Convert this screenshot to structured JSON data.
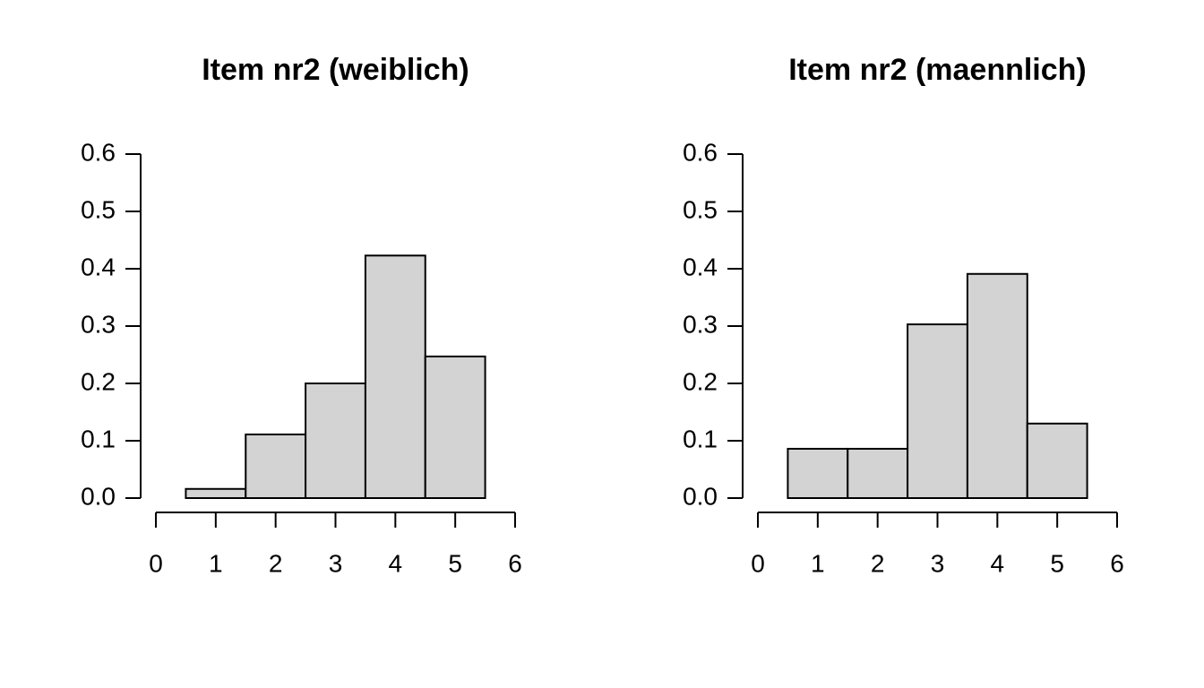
{
  "chart_data": [
    {
      "type": "histogram",
      "title": "Item nr2 (weiblich)",
      "bins": [
        0.5,
        1.5,
        2.5,
        3.5,
        4.5,
        5.5
      ],
      "values": [
        0.016,
        0.111,
        0.2,
        0.423,
        0.247
      ],
      "color": "#d3d3d3",
      "xlim": [
        0,
        6
      ],
      "xticks": [
        0,
        1,
        2,
        3,
        4,
        5,
        6
      ],
      "ylim": [
        0,
        0.6
      ],
      "yticks": [
        {
          "value": 0,
          "label": "0.0"
        },
        0.1,
        0.2,
        0.3,
        0.4,
        0.5,
        0.6
      ]
    },
    {
      "type": "histogram",
      "title": "Item nr2 (maennlich)",
      "bins": [
        0.5,
        1.5,
        2.5,
        3.5,
        4.5,
        5.5
      ],
      "values": [
        0.086,
        0.086,
        0.303,
        0.391,
        0.13
      ],
      "color": "#d3d3d3",
      "xlim": [
        0,
        6
      ],
      "xticks": [
        0,
        1,
        2,
        3,
        4,
        5,
        6
      ],
      "ylim": [
        0,
        0.6
      ],
      "yticks": [
        {
          "value": 0,
          "label": "0.0"
        },
        0.1,
        0.2,
        0.3,
        0.4,
        0.5,
        0.6
      ]
    }
  ]
}
